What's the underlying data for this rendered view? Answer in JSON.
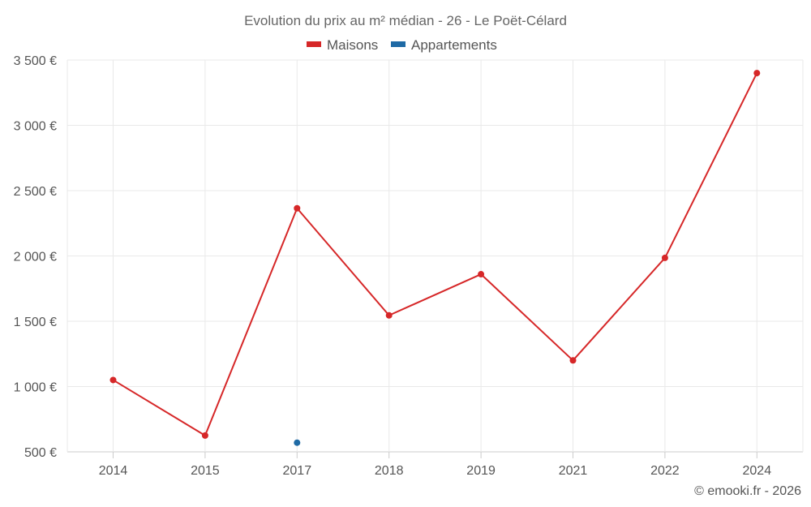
{
  "chart_data": {
    "type": "line",
    "title": "Evolution du prix au m² médian - 26 - Le Poët-Célard",
    "categories": [
      "2014",
      "2015",
      "2017",
      "2018",
      "2019",
      "2021",
      "2022",
      "2024"
    ],
    "series": [
      {
        "name": "Maisons",
        "color": "#d62728",
        "values": [
          1050,
          625,
          2365,
          1545,
          1860,
          1200,
          1985,
          3400
        ]
      },
      {
        "name": "Appartements",
        "color": "#1f6aa5",
        "values": [
          null,
          null,
          570,
          null,
          null,
          null,
          null,
          null
        ]
      }
    ],
    "y_ticks": [
      "500 €",
      "1 000 €",
      "1 500 €",
      "2 000 €",
      "2 500 €",
      "3 000 €",
      "3 500 €"
    ],
    "y_tick_values": [
      500,
      1000,
      1500,
      2000,
      2500,
      3000,
      3500
    ],
    "ylim": [
      500,
      3500
    ],
    "grid": true,
    "legend_position": "top-center"
  },
  "credit": "© emooki.fr - 2026"
}
